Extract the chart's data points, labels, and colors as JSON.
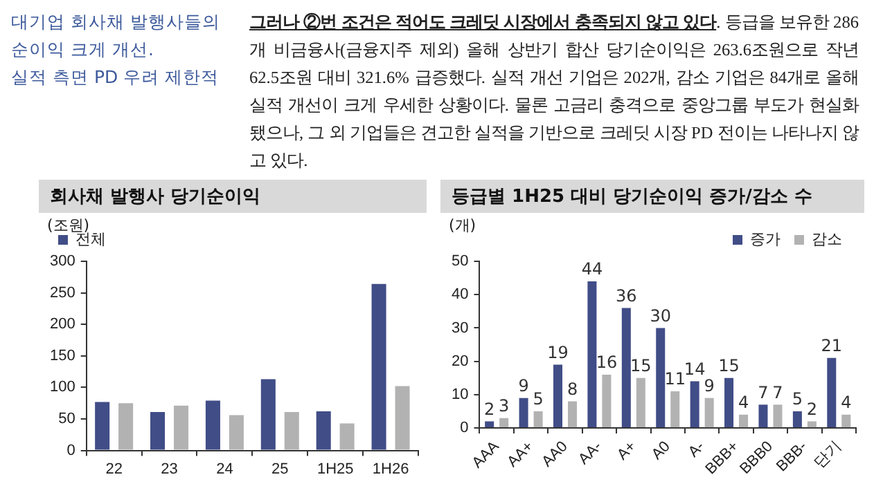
{
  "chart_data": [
    {
      "type": "other",
      "annotations": [
        "대기업 회사채 발행사들의\n순이익 크게 개선.\n실적 측면 PD 우려 제한적",
        "그러나 ②번 조건은 적어도 크레딧 시장에서 충족되지 않고 있다",
        ". 등급을 보유한 286개 비금융사(금융지주 제외) 올해 상반기 합산 당기순이익은 263.6조원으로 작년 62.5조원 대비 321.6% 급증했다. 실적 개선 기업은 202개, 감소 기업은 84개로 올해 실적 개선이 크게 우세한 상황이다. 물론 고금리 충격으로 중앙그룹 부도가 현실화됐으나, 그 외 기업들은 견고한 실적을 기반으로 크레딧 시장 PD 전이는 나타나지 않고 있다."
      ]
    },
    {
      "type": "bar",
      "title": "회사채 발행사 당기순이익",
      "ylabel": "(조원)",
      "categories": [
        "22",
        "23",
        "24",
        "25",
        "1H25",
        "1H26"
      ],
      "series": [
        {
          "name": "전체",
          "color": "#414d87",
          "values": [
            77,
            61,
            79,
            113,
            62,
            264
          ]
        },
        {
          "color": "#b2b2b2",
          "values": [
            75,
            71,
            56,
            61,
            43,
            102
          ]
        }
      ],
      "ylim": [
        0,
        300
      ],
      "yticks": [
        0,
        50,
        100,
        150,
        200,
        250,
        300
      ],
      "grid": false,
      "legend": "top left"
    },
    {
      "type": "bar",
      "title": "등급별 1H25 대비 당기순이익 증가/감소 수",
      "ylabel": "(개)",
      "categories": [
        "AAA",
        "AA+",
        "AA0",
        "AA-",
        "A+",
        "A0",
        "A-",
        "BBB+",
        "BBB0",
        "BBB-",
        "단기"
      ],
      "series": [
        {
          "name": "증가",
          "color": "#414d87",
          "values": [
            2,
            9,
            19,
            44,
            36,
            30,
            14,
            15,
            7,
            5,
            21
          ]
        },
        {
          "name": "감소",
          "color": "#b2b2b2",
          "values": [
            3,
            5,
            8,
            16,
            15,
            11,
            9,
            4,
            7,
            2,
            4
          ]
        }
      ],
      "ylim": [
        0,
        50
      ],
      "yticks": [
        0,
        10,
        20,
        30,
        40,
        50
      ],
      "grid": false,
      "legend": "top right",
      "data_labels": true
    }
  ]
}
